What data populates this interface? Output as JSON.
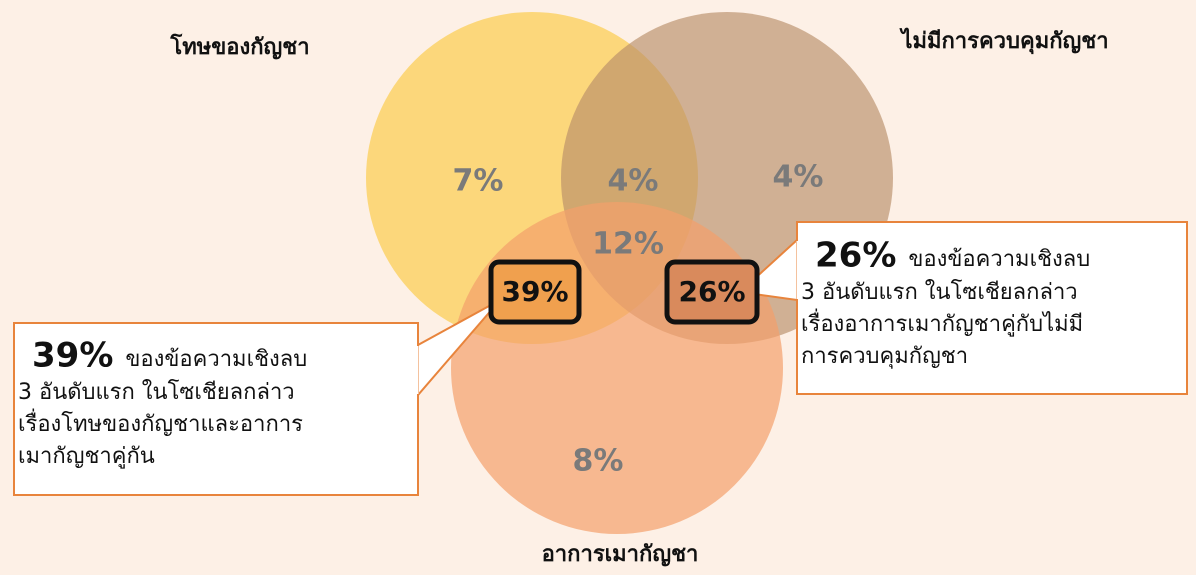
{
  "sets": [
    {
      "label": "โทษของกัญชา"
    },
    {
      "label": "ไม่มีการควบคุมกัญชา"
    },
    {
      "label": "อาการเมากัญชา"
    }
  ],
  "regions": {
    "harm_only": "7%",
    "harm_control": "4%",
    "control_only": "4%",
    "all_three": "12%",
    "harm_high": "39%",
    "control_high": "26%",
    "high_only": "8%"
  },
  "callouts": [
    {
      "value": "39%",
      "text": "ของข้อความเชิงลบ",
      "lines": [
        "3 อันดับแรก ในโซเชียลกล่าว",
        "เรื่องโทษของกัญชาและอาการ",
        "เมากัญชาคู่กัน"
      ]
    },
    {
      "value": "26%",
      "text": "ของข้อความเชิงลบ",
      "lines": [
        "3 อันดับแรก ในโซเชียลกล่าว",
        "เรื่องอาการเมากัญชาคู่กับไม่มี",
        "การควบคุมกัญชา"
      ]
    }
  ]
}
